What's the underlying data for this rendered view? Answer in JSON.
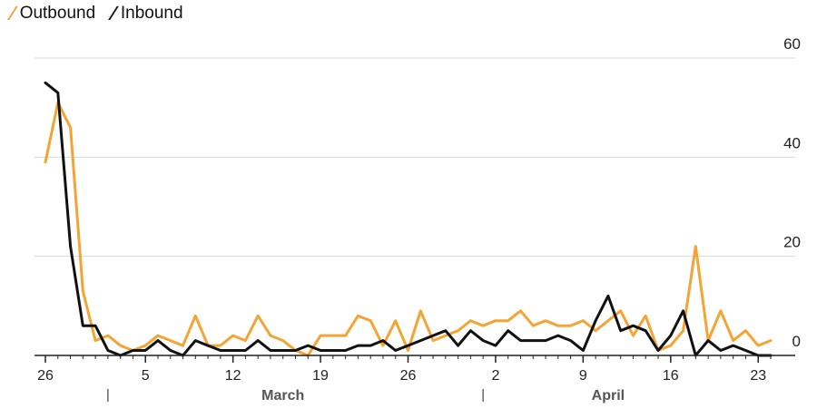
{
  "legend": {
    "outbound_label": "Outbound",
    "inbound_label": "Inbound"
  },
  "colors": {
    "outbound": "#F5A433",
    "inbound": "#111111",
    "grid": "#D9D9D9",
    "axis": "#222222"
  },
  "chart_data": {
    "type": "line",
    "title": "",
    "xlabel": "",
    "ylabel": "",
    "ylim": [
      0,
      60
    ],
    "yticks": [
      0,
      20,
      40,
      60
    ],
    "y_axis_position": "right",
    "grid": true,
    "legend_position": "top-left",
    "x": [
      "2020-02-26",
      "2020-02-27",
      "2020-02-28",
      "2020-02-29",
      "2020-03-01",
      "2020-03-02",
      "2020-03-03",
      "2020-03-04",
      "2020-03-05",
      "2020-03-06",
      "2020-03-07",
      "2020-03-08",
      "2020-03-09",
      "2020-03-10",
      "2020-03-11",
      "2020-03-12",
      "2020-03-13",
      "2020-03-14",
      "2020-03-15",
      "2020-03-16",
      "2020-03-17",
      "2020-03-18",
      "2020-03-19",
      "2020-03-20",
      "2020-03-21",
      "2020-03-22",
      "2020-03-23",
      "2020-03-24",
      "2020-03-25",
      "2020-03-26",
      "2020-03-27",
      "2020-03-28",
      "2020-03-29",
      "2020-03-30",
      "2020-03-31",
      "2020-04-01",
      "2020-04-02",
      "2020-04-03",
      "2020-04-04",
      "2020-04-05",
      "2020-04-06",
      "2020-04-07",
      "2020-04-08",
      "2020-04-09",
      "2020-04-10",
      "2020-04-11",
      "2020-04-12",
      "2020-04-13",
      "2020-04-14",
      "2020-04-15",
      "2020-04-16",
      "2020-04-17",
      "2020-04-18",
      "2020-04-19",
      "2020-04-20",
      "2020-04-21",
      "2020-04-22",
      "2020-04-23",
      "2020-04-24"
    ],
    "xtick_labels": [
      "26",
      "5",
      "12",
      "19",
      "26",
      "2",
      "9",
      "16",
      "23"
    ],
    "xtick_dates": [
      "2020-02-26",
      "2020-03-05",
      "2020-03-12",
      "2020-03-19",
      "2020-03-26",
      "2020-04-02",
      "2020-04-09",
      "2020-04-16",
      "2020-04-23"
    ],
    "month_labels": [
      "March",
      "April"
    ],
    "month_label_dates": [
      "2020-03-16",
      "2020-04-11"
    ],
    "month_separator_dates": [
      "2020-03-02",
      "2020-04-01"
    ],
    "series": [
      {
        "name": "Outbound",
        "values": [
          39,
          51,
          46,
          13,
          3,
          4,
          2,
          1,
          2,
          4,
          3,
          2,
          8,
          2,
          2,
          4,
          3,
          8,
          4,
          3,
          1,
          0,
          4,
          4,
          4,
          8,
          7,
          2,
          7,
          1,
          9,
          3,
          4,
          5,
          7,
          6,
          7,
          7,
          9,
          6,
          7,
          6,
          6,
          7,
          5,
          7,
          9,
          4,
          8,
          1,
          2,
          5,
          22,
          3,
          9,
          3,
          5,
          2,
          3
        ]
      },
      {
        "name": "Inbound",
        "values": [
          55,
          53,
          22,
          6,
          6,
          1,
          0,
          1,
          1,
          3,
          1,
          0,
          3,
          2,
          1,
          1,
          1,
          3,
          1,
          1,
          1,
          2,
          1,
          1,
          1,
          2,
          2,
          3,
          1,
          2,
          3,
          4,
          5,
          2,
          5,
          3,
          2,
          5,
          3,
          3,
          3,
          4,
          3,
          1,
          7,
          12,
          5,
          6,
          5,
          1,
          4,
          9,
          0,
          3,
          1,
          2,
          1,
          0,
          0
        ]
      }
    ]
  }
}
